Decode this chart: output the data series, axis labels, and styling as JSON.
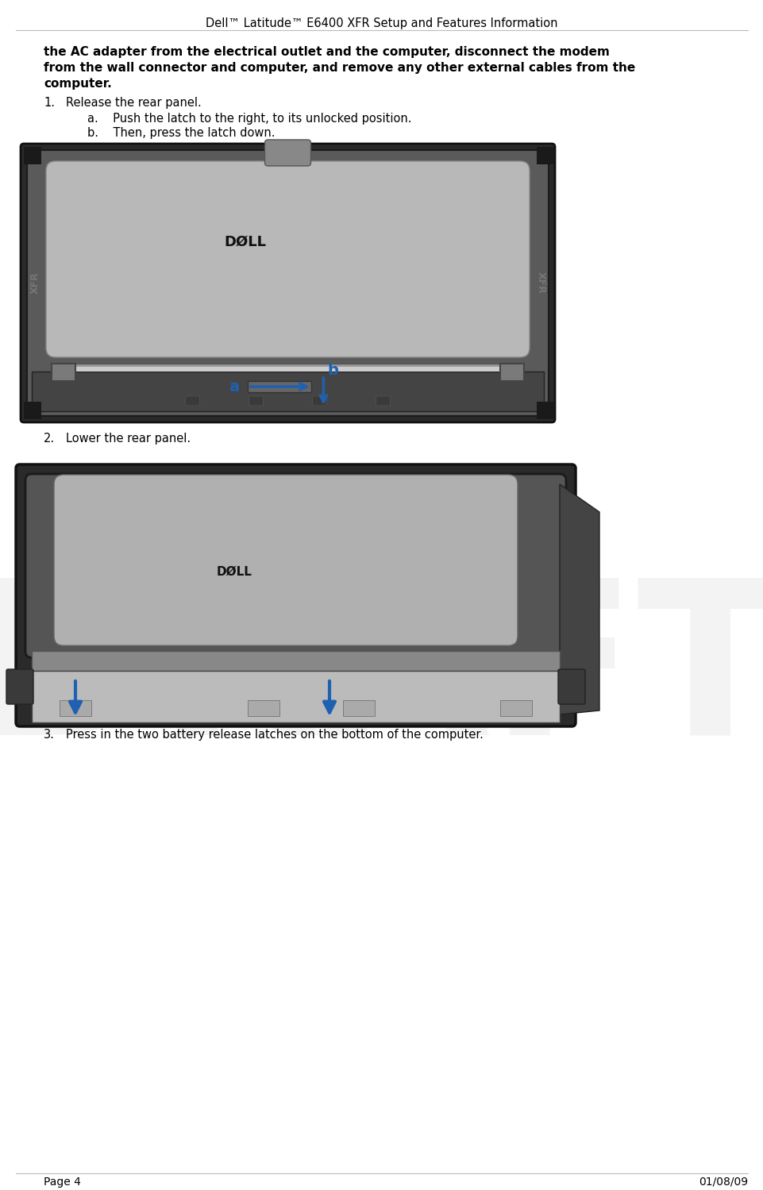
{
  "header": "Dell™ Latitude™ E6400 XFR Setup and Features Information",
  "header_fontsize": 10.5,
  "bold_line1": "the AC adapter from the electrical outlet and the computer, disconnect the modem",
  "bold_line2": "from the wall connector and computer, and remove any other external cables from the",
  "bold_line3": "computer.",
  "bold_fontsize": 11,
  "step1_num": "1.",
  "step1_text": "Release the rear panel.",
  "step1a": "a.    Push the latch to the right, to its unlocked position.",
  "step1b": "b.    Then, press the latch down.",
  "step2_num": "2.",
  "step2_text": "Lower the rear panel.",
  "step3_num": "3.",
  "step3_text": "Press in the two battery release latches on the bottom of the computer.",
  "step_fontsize": 10.5,
  "footer_left": "Page 4",
  "footer_right": "01/08/09",
  "footer_fontsize": 10,
  "bg_color": "#ffffff",
  "text_color": "#000000",
  "header_color": "#000000",
  "arrow_color": "#2060b0",
  "dell_logo_color": "#000000"
}
